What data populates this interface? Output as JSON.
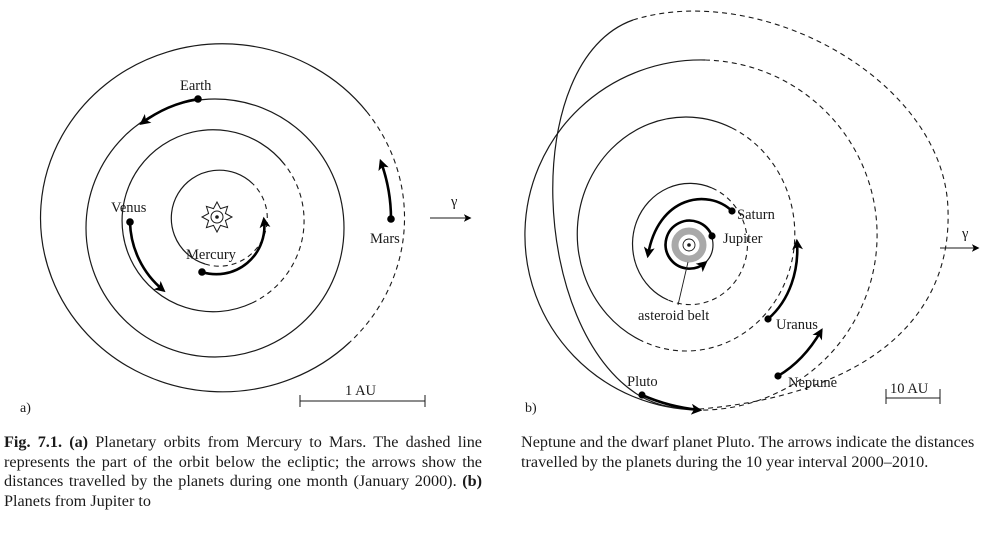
{
  "panel_a": {
    "label": "a)",
    "planets": {
      "mercury": "Mercury",
      "venus": "Venus",
      "earth": "Earth",
      "mars": "Mars"
    },
    "scale_label": "1 AU",
    "vernal_symbol": "γ"
  },
  "panel_b": {
    "label": "b)",
    "planets": {
      "jupiter": "Jupiter",
      "saturn": "Saturn",
      "uranus": "Uranus",
      "neptune": "Neptune",
      "pluto": "Pluto"
    },
    "asteroid_belt": "asteroid belt",
    "scale_label": "10 AU",
    "vernal_symbol": "γ"
  },
  "caption": {
    "figure_label": "Fig. 7.1.",
    "a_marker": "(a)",
    "a_text": " Planetary orbits from Mercury to Mars. The dashed line represents the part of the orbit below the ecliptic; the arrows show the distances travelled by the planets during one month (January 2000). ",
    "b_marker": "(b)",
    "b_text": " Planets from Jupiter to",
    "right_text": "Neptune and the dwarf planet Pluto. The arrows indicate the distances travelled by the planets during the 10 year interval 2000–2010."
  }
}
